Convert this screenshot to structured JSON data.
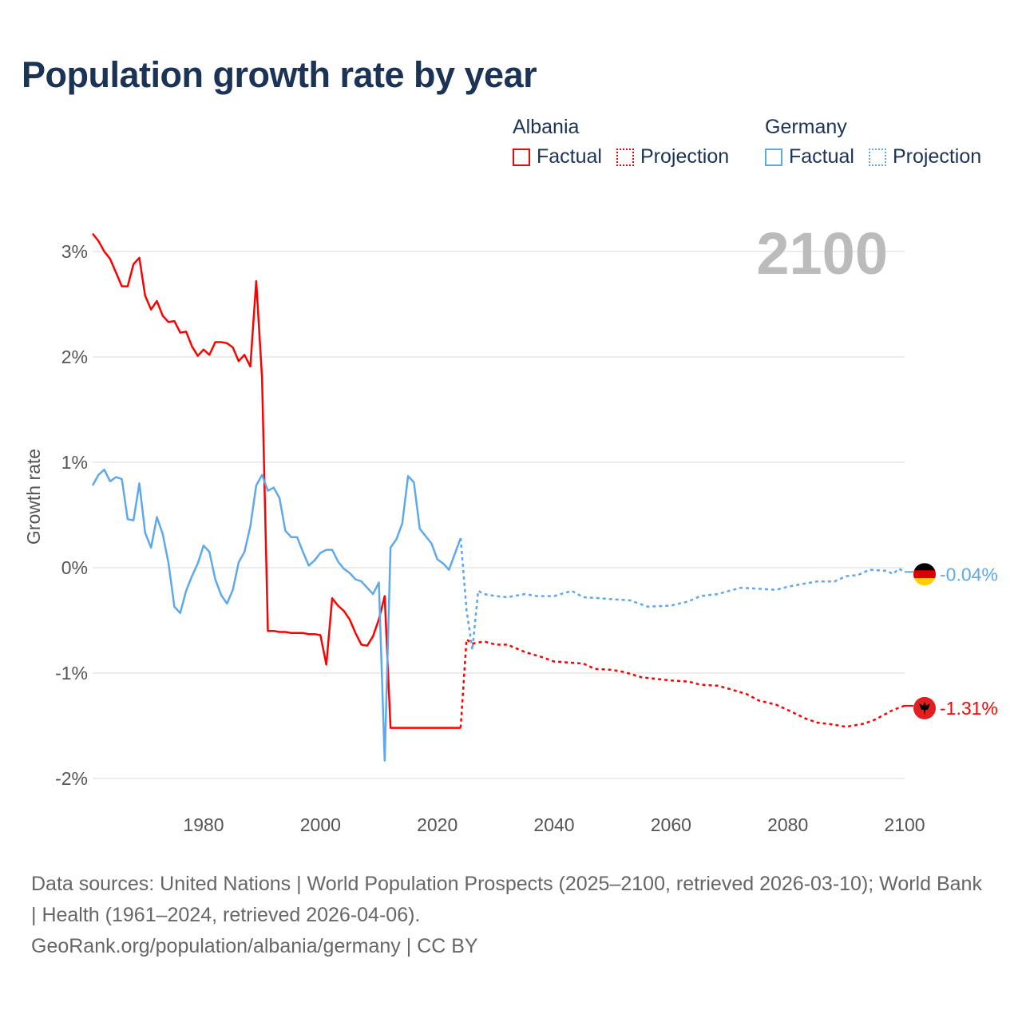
{
  "title": "Population growth rate by year",
  "legend": [
    {
      "country": "Albania",
      "color": "#ff0000",
      "factual": "Factual",
      "projection": "Projection"
    },
    {
      "country": "Germany",
      "color": "#5ea8ec",
      "factual": "Factual",
      "projection": "Projection"
    }
  ],
  "year_label": "2100",
  "source_line1": "Data sources: United Nations | World Population Prospects (2025–2100, retrieved 2026-03-10); World Bank | Health (1961–2024, retrieved 2026-04-06).",
  "source_line2": "GeoRank.org/population/albania/germany | CC BY",
  "chart_data": {
    "type": "line",
    "title": "Population growth rate by year",
    "xlabel": "",
    "ylabel": "Growth rate",
    "xlim": [
      1961,
      2100
    ],
    "ylim": [
      -2.3,
      3.4
    ],
    "x_ticks": [
      1980,
      2000,
      2020,
      2040,
      2060,
      2080,
      2100
    ],
    "y_ticks": [
      {
        "v": 3,
        "label": "3%"
      },
      {
        "v": 2,
        "label": "2%"
      },
      {
        "v": 1,
        "label": "1%"
      },
      {
        "v": 0,
        "label": "0%"
      },
      {
        "v": -1,
        "label": "-1%"
      },
      {
        "v": -2,
        "label": "-2%"
      }
    ],
    "grid": true,
    "series": [
      {
        "name": "Albania",
        "color": "#ff0000",
        "end_label": "-1.31%",
        "factual": [
          [
            1961,
            3.17
          ],
          [
            1962,
            3.1
          ],
          [
            1963,
            3.0
          ],
          [
            1964,
            2.93
          ],
          [
            1965,
            2.8
          ],
          [
            1966,
            2.67
          ],
          [
            1967,
            2.67
          ],
          [
            1968,
            2.88
          ],
          [
            1969,
            2.94
          ],
          [
            1970,
            2.58
          ],
          [
            1971,
            2.45
          ],
          [
            1972,
            2.53
          ],
          [
            1973,
            2.39
          ],
          [
            1974,
            2.33
          ],
          [
            1975,
            2.34
          ],
          [
            1976,
            2.23
          ],
          [
            1977,
            2.24
          ],
          [
            1978,
            2.1
          ],
          [
            1979,
            2.01
          ],
          [
            1980,
            2.07
          ],
          [
            1981,
            2.02
          ],
          [
            1982,
            2.14
          ],
          [
            1983,
            2.14
          ],
          [
            1984,
            2.13
          ],
          [
            1985,
            2.09
          ],
          [
            1986,
            1.96
          ],
          [
            1987,
            2.02
          ],
          [
            1988,
            1.91
          ],
          [
            1989,
            2.72
          ],
          [
            1990,
            1.8
          ],
          [
            1991,
            -0.6
          ],
          [
            1992,
            -0.6
          ],
          [
            1993,
            -0.61
          ],
          [
            1994,
            -0.61
          ],
          [
            1995,
            -0.62
          ],
          [
            1996,
            -0.62
          ],
          [
            1997,
            -0.62
          ],
          [
            1998,
            -0.63
          ],
          [
            1999,
            -0.63
          ],
          [
            2000,
            -0.64
          ],
          [
            2001,
            -0.92
          ],
          [
            2002,
            -0.29
          ],
          [
            2003,
            -0.36
          ],
          [
            2004,
            -0.41
          ],
          [
            2005,
            -0.49
          ],
          [
            2006,
            -0.62
          ],
          [
            2007,
            -0.73
          ],
          [
            2008,
            -0.74
          ],
          [
            2009,
            -0.65
          ],
          [
            2010,
            -0.49
          ],
          [
            2011,
            -0.27
          ],
          [
            2012,
            -1.52
          ],
          [
            2013,
            -1.52
          ],
          [
            2014,
            -1.52
          ],
          [
            2015,
            -1.52
          ],
          [
            2016,
            -1.52
          ],
          [
            2017,
            -1.52
          ],
          [
            2018,
            -1.52
          ],
          [
            2019,
            -1.52
          ],
          [
            2020,
            -1.52
          ],
          [
            2021,
            -1.52
          ],
          [
            2022,
            -1.52
          ],
          [
            2023,
            -1.52
          ],
          [
            2024,
            -1.52
          ]
        ],
        "projection": [
          [
            2024,
            -1.52
          ],
          [
            2025,
            -0.68
          ],
          [
            2026,
            -0.72
          ],
          [
            2028,
            -0.7
          ],
          [
            2030,
            -0.73
          ],
          [
            2032,
            -0.73
          ],
          [
            2035,
            -0.8
          ],
          [
            2038,
            -0.85
          ],
          [
            2040,
            -0.89
          ],
          [
            2045,
            -0.91
          ],
          [
            2047,
            -0.96
          ],
          [
            2050,
            -0.97
          ],
          [
            2052,
            -0.99
          ],
          [
            2055,
            -1.04
          ],
          [
            2060,
            -1.07
          ],
          [
            2063,
            -1.08
          ],
          [
            2065,
            -1.11
          ],
          [
            2068,
            -1.12
          ],
          [
            2070,
            -1.15
          ],
          [
            2073,
            -1.2
          ],
          [
            2075,
            -1.26
          ],
          [
            2078,
            -1.3
          ],
          [
            2080,
            -1.35
          ],
          [
            2083,
            -1.43
          ],
          [
            2085,
            -1.47
          ],
          [
            2088,
            -1.49
          ],
          [
            2090,
            -1.51
          ],
          [
            2093,
            -1.48
          ],
          [
            2095,
            -1.44
          ],
          [
            2098,
            -1.35
          ],
          [
            2100,
            -1.31
          ]
        ]
      },
      {
        "name": "Germany",
        "color": "#5ea8ec",
        "end_label": "-0.04%",
        "factual": [
          [
            1961,
            0.78
          ],
          [
            1962,
            0.88
          ],
          [
            1963,
            0.93
          ],
          [
            1964,
            0.82
          ],
          [
            1965,
            0.86
          ],
          [
            1966,
            0.84
          ],
          [
            1967,
            0.46
          ],
          [
            1968,
            0.45
          ],
          [
            1969,
            0.8
          ],
          [
            1970,
            0.33
          ],
          [
            1971,
            0.19
          ],
          [
            1972,
            0.48
          ],
          [
            1973,
            0.32
          ],
          [
            1974,
            0.04
          ],
          [
            1975,
            -0.37
          ],
          [
            1976,
            -0.43
          ],
          [
            1977,
            -0.22
          ],
          [
            1978,
            -0.08
          ],
          [
            1979,
            0.04
          ],
          [
            1980,
            0.21
          ],
          [
            1981,
            0.15
          ],
          [
            1982,
            -0.11
          ],
          [
            1983,
            -0.26
          ],
          [
            1984,
            -0.34
          ],
          [
            1985,
            -0.21
          ],
          [
            1986,
            0.05
          ],
          [
            1987,
            0.15
          ],
          [
            1988,
            0.39
          ],
          [
            1989,
            0.78
          ],
          [
            1990,
            0.88
          ],
          [
            1991,
            0.73
          ],
          [
            1992,
            0.76
          ],
          [
            1993,
            0.66
          ],
          [
            1994,
            0.35
          ],
          [
            1995,
            0.29
          ],
          [
            1996,
            0.29
          ],
          [
            1997,
            0.15
          ],
          [
            1998,
            0.02
          ],
          [
            1999,
            0.07
          ],
          [
            2000,
            0.14
          ],
          [
            2001,
            0.17
          ],
          [
            2002,
            0.17
          ],
          [
            2003,
            0.06
          ],
          [
            2004,
            -0.01
          ],
          [
            2005,
            -0.05
          ],
          [
            2006,
            -0.11
          ],
          [
            2007,
            -0.13
          ],
          [
            2008,
            -0.19
          ],
          [
            2009,
            -0.25
          ],
          [
            2010,
            -0.14
          ],
          [
            2011,
            -1.83
          ],
          [
            2012,
            0.19
          ],
          [
            2013,
            0.27
          ],
          [
            2014,
            0.42
          ],
          [
            2015,
            0.87
          ],
          [
            2016,
            0.81
          ],
          [
            2017,
            0.37
          ],
          [
            2018,
            0.3
          ],
          [
            2019,
            0.23
          ],
          [
            2020,
            0.08
          ],
          [
            2021,
            0.04
          ],
          [
            2022,
            -0.02
          ],
          [
            2023,
            0.13
          ],
          [
            2024,
            0.28
          ]
        ],
        "projection": [
          [
            2024,
            0.28
          ],
          [
            2025,
            -0.4
          ],
          [
            2026,
            -0.78
          ],
          [
            2027,
            -0.22
          ],
          [
            2028,
            -0.25
          ],
          [
            2030,
            -0.27
          ],
          [
            2032,
            -0.28
          ],
          [
            2035,
            -0.25
          ],
          [
            2037,
            -0.27
          ],
          [
            2040,
            -0.27
          ],
          [
            2043,
            -0.22
          ],
          [
            2045,
            -0.28
          ],
          [
            2048,
            -0.29
          ],
          [
            2050,
            -0.3
          ],
          [
            2053,
            -0.31
          ],
          [
            2056,
            -0.37
          ],
          [
            2060,
            -0.36
          ],
          [
            2063,
            -0.32
          ],
          [
            2065,
            -0.27
          ],
          [
            2068,
            -0.25
          ],
          [
            2070,
            -0.22
          ],
          [
            2072,
            -0.19
          ],
          [
            2075,
            -0.2
          ],
          [
            2078,
            -0.21
          ],
          [
            2080,
            -0.18
          ],
          [
            2083,
            -0.15
          ],
          [
            2085,
            -0.13
          ],
          [
            2088,
            -0.13
          ],
          [
            2090,
            -0.08
          ],
          [
            2092,
            -0.07
          ],
          [
            2094,
            -0.02
          ],
          [
            2097,
            -0.03
          ],
          [
            2098,
            -0.06
          ],
          [
            2099,
            -0.01
          ],
          [
            2100,
            -0.04
          ]
        ]
      }
    ]
  }
}
